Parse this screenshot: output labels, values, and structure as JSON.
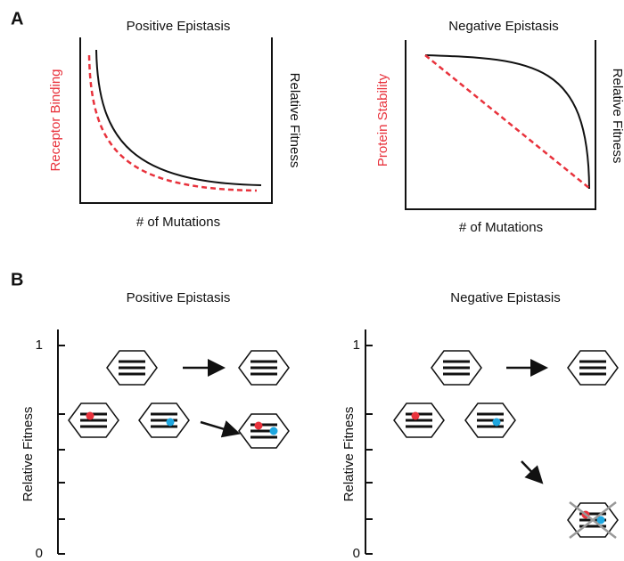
{
  "panel_a": {
    "label": "A",
    "left": {
      "title": "Positive Epistasis",
      "y_label": "Receptor Binding",
      "y2_label": "Relative Fitness",
      "x_label": "# of Mutations"
    },
    "right": {
      "title": "Negative Epistasis",
      "y_label": "Protein Stability",
      "y2_label": "Relative Fitness",
      "x_label": "# of Mutations"
    }
  },
  "panel_b": {
    "label": "B",
    "left": {
      "title": "Positive Epistasis",
      "y_label": "Relative Fitness",
      "tick_top": "1",
      "tick_bottom": "0"
    },
    "right": {
      "title": "Negative Epistasis",
      "y_label": "Relative Fitness",
      "tick_top": "1",
      "tick_bottom": "0"
    }
  }
}
